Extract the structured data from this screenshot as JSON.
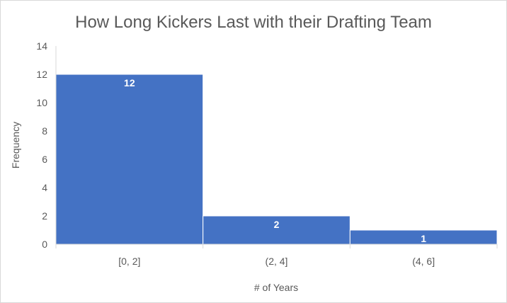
{
  "chart_data": {
    "type": "bar",
    "title": "How Long Kickers Last with their Drafting Team",
    "xlabel": "# of Years",
    "ylabel": "Frequency",
    "categories": [
      "[0, 2]",
      "(2, 4]",
      "(4, 6]"
    ],
    "values": [
      12,
      2,
      1
    ],
    "data_labels": [
      "12",
      "2",
      "1"
    ],
    "ylim": [
      0,
      14
    ],
    "yticks": [
      0,
      2,
      4,
      6,
      8,
      10,
      12,
      14
    ],
    "grid": false,
    "legend": "none",
    "bar_color": "#4472C4",
    "bar_gap": "none (histogram)"
  }
}
